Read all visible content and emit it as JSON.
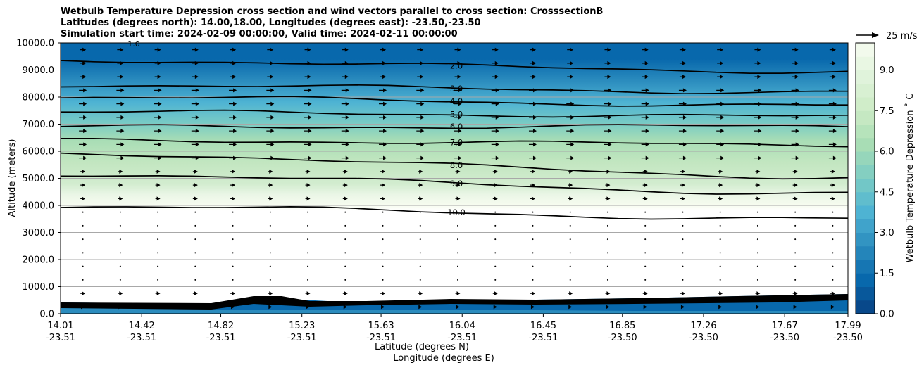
{
  "title_lines": [
    "Wetbulb Temperature Depression cross section and wind vectors parallel to cross section: CrosssectionB",
    "Latitudes (degrees north): 14.00,18.00, Longitudes (degrees east): -23.50,-23.50",
    "Simulation start time: 2024-02-09 00:00:00, Valid time: 2024-02-11 00:00:00"
  ],
  "chart_data": {
    "type": "contour",
    "title": "Wetbulb Temperature Depression cross section and wind vectors parallel to cross section: CrosssectionB",
    "ylabel": "Altitude (meters)",
    "xlabel_primary": "Latitude (degrees N)",
    "xlabel_secondary": "Longitude (degrees E)",
    "ylim": [
      0,
      10000
    ],
    "xlim": [
      14.01,
      17.99
    ],
    "y_ticks": [
      "0.0",
      "1000.0",
      "2000.0",
      "3000.0",
      "4000.0",
      "5000.0",
      "6000.0",
      "7000.0",
      "8000.0",
      "9000.0",
      "10000.0"
    ],
    "y_tick_values": [
      0,
      1000,
      2000,
      3000,
      4000,
      5000,
      6000,
      7000,
      8000,
      9000,
      10000
    ],
    "x_ticks": [
      {
        "lat": "14.01",
        "lon": "-23.51",
        "value": 14.01
      },
      {
        "lat": "14.42",
        "lon": "-23.51",
        "value": 14.42
      },
      {
        "lat": "14.82",
        "lon": "-23.51",
        "value": 14.82
      },
      {
        "lat": "15.23",
        "lon": "-23.51",
        "value": 15.23
      },
      {
        "lat": "15.63",
        "lon": "-23.51",
        "value": 15.63
      },
      {
        "lat": "16.04",
        "lon": "-23.51",
        "value": 16.04
      },
      {
        "lat": "16.45",
        "lon": "-23.51",
        "value": 16.45
      },
      {
        "lat": "16.85",
        "lon": "-23.50",
        "value": 16.85
      },
      {
        "lat": "17.26",
        "lon": "-23.50",
        "value": 17.26
      },
      {
        "lat": "17.67",
        "lon": "-23.50",
        "value": 17.67
      },
      {
        "lat": "17.99",
        "lon": "-23.50",
        "value": 17.99
      }
    ],
    "grid": "horizontal",
    "colorbar": {
      "label": "Wetbulb Temperature Depression $^\\circ$C",
      "label_display": "Wetbulb Temperature Depression ˚ C",
      "range": [
        0,
        10
      ],
      "ticks": [
        "0.0",
        "1.5",
        "3.0",
        "4.5",
        "6.0",
        "7.5",
        "9.0"
      ],
      "tick_values": [
        0,
        1.5,
        3.0,
        4.5,
        6.0,
        7.5,
        9.0
      ],
      "colormap": "GnBu_r",
      "colors": [
        "#084081",
        "#0868ac",
        "#2b8cbe",
        "#4eb3d3",
        "#7bccc4",
        "#a8ddb5",
        "#ccebc5",
        "#e0f3db",
        "#f7fcf0"
      ]
    },
    "wind_key": {
      "label": "25 m/s"
    },
    "contour_levels": [
      {
        "label": "2.0",
        "alt_left": 9350,
        "alt_right": 8950
      },
      {
        "label": "3.0",
        "alt_left": 8450,
        "alt_right": 8180
      },
      {
        "label": "4.0",
        "alt_left": 8000,
        "alt_right": 7680
      },
      {
        "label": "5.0",
        "alt_left": 7450,
        "alt_right": 7280
      },
      {
        "label": "6.0",
        "alt_left": 6900,
        "alt_right": 6920
      },
      {
        "label": "7.0",
        "alt_left": 6400,
        "alt_right": 6250
      },
      {
        "label": "8.0",
        "alt_left": 5900,
        "alt_right": 5050
      },
      {
        "label": "9.0",
        "alt_left": 5150,
        "alt_right": 4450
      },
      {
        "label": "10.0",
        "alt_left": 3970,
        "alt_right": 3500
      }
    ],
    "near_surface_labels": [
      "2.0",
      "1.0",
      "3.0",
      "3.0",
      "3.0",
      "3.0",
      "4.0",
      "5.0",
      "6.0",
      "7.0",
      "8.0",
      "9.0",
      "10.0"
    ],
    "top_label": "1.0"
  }
}
